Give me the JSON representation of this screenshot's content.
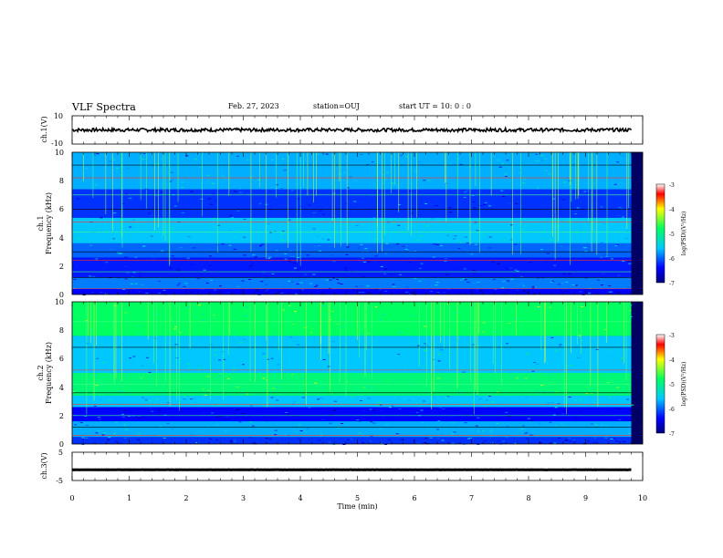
{
  "header": {
    "title": "VLF Spectra",
    "date": "Feb. 27, 2023",
    "station": "station=OUJ",
    "start_ut": "start UT =   10: 0  : 0"
  },
  "panels": {
    "ch1_wave": {
      "ylabel": "ch.1(V)",
      "yticks": [
        "10",
        "-10"
      ]
    },
    "ch1_spec": {
      "ylabel_top": "ch.1",
      "ylabel": "Frequency (kHz)",
      "yticks": [
        "0",
        "2",
        "4",
        "6",
        "8",
        "10"
      ]
    },
    "ch2_spec": {
      "ylabel_top": "ch.2",
      "ylabel": "Frequency (kHz)",
      "yticks": [
        "0",
        "2",
        "4",
        "6",
        "8",
        "10"
      ]
    },
    "ch3_wave": {
      "ylabel": "ch.3(V)",
      "yticks": [
        "5",
        "-5"
      ]
    }
  },
  "colorbar": {
    "label": "log(PSD)(V²/Hz)",
    "ticks": [
      "-3",
      "-4",
      "-5",
      "-6",
      "-7"
    ]
  },
  "xaxis": {
    "label": "Time (min)",
    "ticks": [
      "0",
      "1",
      "2",
      "3",
      "4",
      "5",
      "6",
      "7",
      "8",
      "9",
      "10"
    ]
  },
  "chart_data": [
    {
      "type": "line",
      "name": "ch.1 waveform",
      "xlabel": "Time (min)",
      "ylabel": "ch.1(V)",
      "xlim": [
        0,
        10
      ],
      "ylim": [
        -10,
        10
      ],
      "x_end": 9.8,
      "baseline": 0,
      "amplitude": 1.2
    },
    {
      "type": "heatmap",
      "name": "ch.1 spectrogram",
      "xlabel": "Time (min)",
      "ylabel": "Frequency (kHz)",
      "xlim": [
        0,
        10
      ],
      "ylim": [
        0,
        10
      ],
      "x_end": 9.8,
      "zlabel": "log(PSD)(V²/Hz)",
      "zlim": [
        -7,
        -3
      ],
      "bands": [
        {
          "f": [
            0,
            0.4
          ],
          "z": -6.4
        },
        {
          "f": [
            0.4,
            1.2
          ],
          "z": -5.9
        },
        {
          "f": [
            1.2,
            2.6
          ],
          "z": -6.3
        },
        {
          "f": [
            2.6,
            3.6
          ],
          "z": -6.0
        },
        {
          "f": [
            3.6,
            5.4
          ],
          "z": -5.6
        },
        {
          "f": [
            5.4,
            7.4
          ],
          "z": -6.2
        },
        {
          "f": [
            7.4,
            10
          ],
          "z": -5.7
        }
      ],
      "lines_khz": [
        0.4,
        1.2,
        1.6,
        2.4,
        3.0,
        4.4,
        5.1,
        6.0,
        7.0,
        8.2,
        9.1
      ]
    },
    {
      "type": "heatmap",
      "name": "ch.2 spectrogram",
      "xlabel": "Time (min)",
      "ylabel": "Frequency (kHz)",
      "xlim": [
        0,
        10
      ],
      "ylim": [
        0,
        10
      ],
      "x_end": 9.8,
      "zlabel": "log(PSD)(V²/Hz)",
      "zlim": [
        -7,
        -3
      ],
      "bands": [
        {
          "f": [
            0,
            0.5
          ],
          "z": -6.2
        },
        {
          "f": [
            0.5,
            1.6
          ],
          "z": -5.7
        },
        {
          "f": [
            1.6,
            2.6
          ],
          "z": -6.4
        },
        {
          "f": [
            2.6,
            3.4
          ],
          "z": -5.6
        },
        {
          "f": [
            3.4,
            5.0
          ],
          "z": -4.9
        },
        {
          "f": [
            5.0,
            7.6
          ],
          "z": -5.6
        },
        {
          "f": [
            7.6,
            10
          ],
          "z": -4.8
        }
      ],
      "lines_khz": [
        0.6,
        1.2,
        2.0,
        2.8,
        3.6,
        4.2,
        5.2,
        6.8,
        8.6
      ]
    },
    {
      "type": "line",
      "name": "ch.3 waveform",
      "xlabel": "Time (min)",
      "ylabel": "ch.3(V)",
      "xlim": [
        0,
        10
      ],
      "ylim": [
        -5,
        5
      ],
      "x_end": 9.8,
      "baseline": -1.2,
      "amplitude": 0.05
    }
  ]
}
